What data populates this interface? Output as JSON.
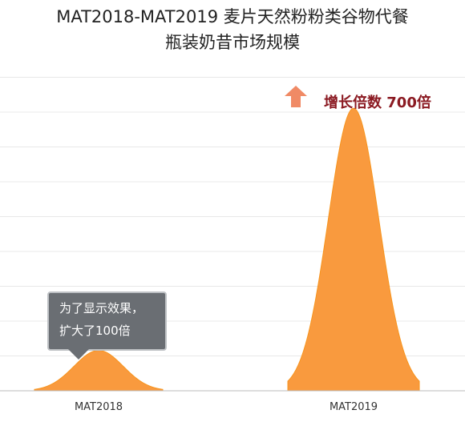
{
  "chart_data": {
    "type": "area",
    "title_lines": [
      "MAT2018-MAT2019 麦片天然粉粉类谷物代餐",
      "瓶装奶昔市场规模"
    ],
    "categories": [
      "MAT2018",
      "MAT2019"
    ],
    "values": [
      1,
      700
    ],
    "value_note": "MAT2018 shown enlarged 100x for visibility",
    "display_scale": [
      100,
      1
    ],
    "ylim": [
      0,
      750
    ],
    "grid": true,
    "colors": {
      "fill": "#f99a3e",
      "edge": "#f7941d",
      "grid": "#e8e8e8",
      "axis": "#bbbbbb",
      "growth": "#8b1a22",
      "arrow": "#f08a65",
      "callout": "#6a6e73"
    },
    "growth_annotation": "增长倍数 700倍",
    "callout": {
      "lines": [
        "为了显示效果，",
        "扩大了100倍"
      ]
    }
  }
}
